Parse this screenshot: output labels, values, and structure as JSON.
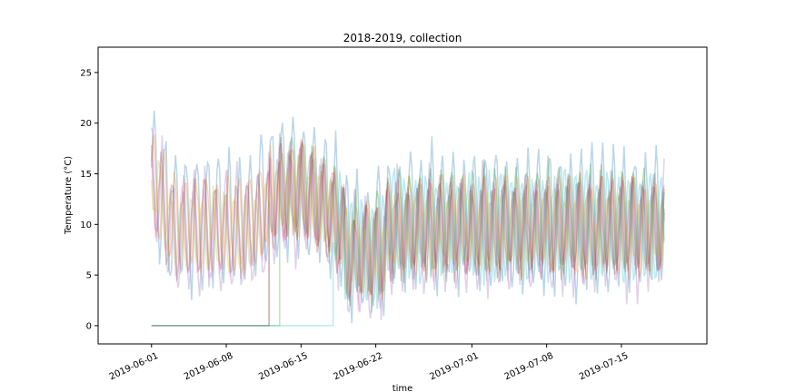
{
  "chart_data": {
    "type": "line",
    "title": "2018-2019, collection",
    "xlabel": "time",
    "ylabel": "Temperature (°C)",
    "xlim": [
      "2019-05-27",
      "2019-07-23"
    ],
    "ylim": [
      -1.8,
      27.5
    ],
    "x_ticks": [
      "2019-06-01",
      "2019-06-08",
      "2019-06-15",
      "2019-06-22",
      "2019-07-01",
      "2019-07-08",
      "2019-07-15"
    ],
    "y_ticks": [
      0,
      5,
      10,
      15,
      20,
      25
    ],
    "grid": false,
    "legend": "none",
    "series_alpha": 0.3,
    "x_range": [
      "2019-06-01",
      "2019-07-19"
    ],
    "series": [
      {
        "color": "#1f77b4",
        "start": "2019-06-01",
        "base": 10.5,
        "amp": 6.5,
        "phase": 0.0
      },
      {
        "color": "#ff7f0e",
        "start": "2019-06-01",
        "base": 10.0,
        "amp": 4.5,
        "phase": 0.4
      },
      {
        "color": "#2ca02c",
        "start": "2019-06-13",
        "base": 10.3,
        "amp": 5.0,
        "phase": 0.8
      },
      {
        "color": "#d62728",
        "start": "2019-06-12",
        "base": 9.8,
        "amp": 4.0,
        "phase": 1.2
      },
      {
        "color": "#9467bd",
        "start": "2019-06-01",
        "base": 9.2,
        "amp": 5.5,
        "phase": 1.6
      },
      {
        "color": "#8c564b",
        "start": "2019-06-01",
        "base": 9.5,
        "amp": 4.2,
        "phase": 2.0
      },
      {
        "color": "#e377c2",
        "start": "2019-06-01",
        "base": 9.0,
        "amp": 3.8,
        "phase": 2.4
      },
      {
        "color": "#7f7f7f",
        "start": "2019-06-12",
        "base": 9.7,
        "amp": 3.6,
        "phase": 2.8
      },
      {
        "color": "#bcbd22",
        "start": "2019-06-01",
        "base": 9.4,
        "amp": 3.2,
        "phase": 3.2
      },
      {
        "color": "#17becf",
        "start": "2019-06-18",
        "base": 9.8,
        "amp": 4.8,
        "phase": 3.6
      }
    ]
  }
}
